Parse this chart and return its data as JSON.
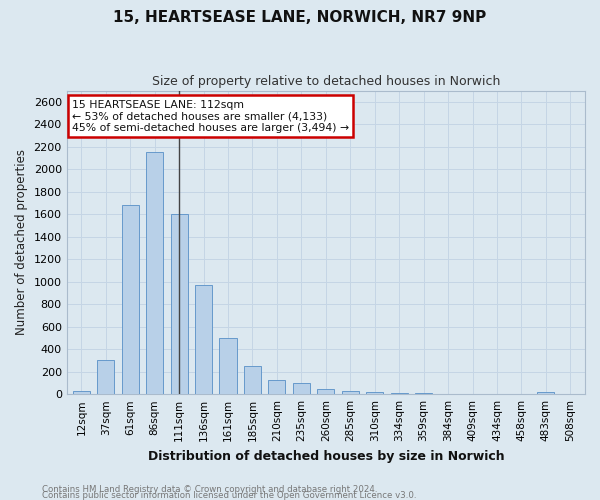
{
  "title1": "15, HEARTSEASE LANE, NORWICH, NR7 9NP",
  "title2": "Size of property relative to detached houses in Norwich",
  "xlabel": "Distribution of detached houses by size in Norwich",
  "ylabel": "Number of detached properties",
  "categories": [
    "12sqm",
    "37sqm",
    "61sqm",
    "86sqm",
    "111sqm",
    "136sqm",
    "161sqm",
    "185sqm",
    "210sqm",
    "235sqm",
    "260sqm",
    "285sqm",
    "310sqm",
    "334sqm",
    "359sqm",
    "384sqm",
    "409sqm",
    "434sqm",
    "458sqm",
    "483sqm",
    "508sqm"
  ],
  "values": [
    25,
    300,
    1680,
    2150,
    1600,
    970,
    500,
    248,
    125,
    100,
    48,
    30,
    18,
    10,
    8,
    5,
    5,
    5,
    5,
    22,
    5
  ],
  "bar_color": "#b8d0e8",
  "bar_edge_color": "#6699cc",
  "vline_index": 4,
  "vline_color": "#444444",
  "annotation_line1": "15 HEARTSEASE LANE: 112sqm",
  "annotation_line2": "← 53% of detached houses are smaller (4,133)",
  "annotation_line3": "45% of semi-detached houses are larger (3,494) →",
  "annotation_box_facecolor": "#ffffff",
  "annotation_border_color": "#cc0000",
  "ylim": [
    0,
    2700
  ],
  "yticks": [
    0,
    200,
    400,
    600,
    800,
    1000,
    1200,
    1400,
    1600,
    1800,
    2000,
    2200,
    2400,
    2600
  ],
  "grid_color": "#c5d5e5",
  "background_color": "#dce8f0",
  "footer1": "Contains HM Land Registry data © Crown copyright and database right 2024.",
  "footer2": "Contains public sector information licensed under the Open Government Licence v3.0."
}
